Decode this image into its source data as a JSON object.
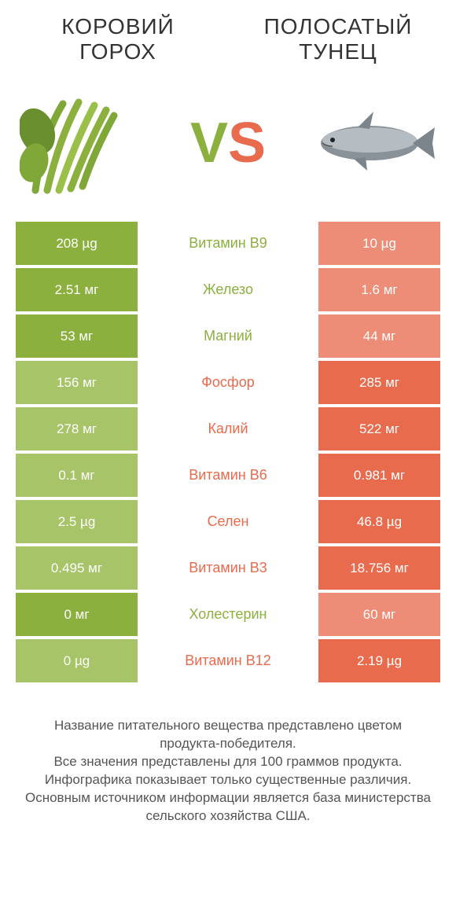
{
  "colors": {
    "left": "#8bb03e",
    "right": "#e96b4e",
    "left_dim": "#a8c468",
    "right_dim": "#ed8d77"
  },
  "products": {
    "left_title": "КОРОВИЙ ГОРОХ",
    "right_title": "ПОЛОСАТЫЙ ТУНЕЦ"
  },
  "vs": {
    "v": "V",
    "s": "S"
  },
  "rows": [
    {
      "label": "Витамин B9",
      "left": "208 µg",
      "right": "10 µg",
      "winner": "left"
    },
    {
      "label": "Железо",
      "left": "2.51 мг",
      "right": "1.6 мг",
      "winner": "left"
    },
    {
      "label": "Магний",
      "left": "53 мг",
      "right": "44 мг",
      "winner": "left"
    },
    {
      "label": "Фосфор",
      "left": "156 мг",
      "right": "285 мг",
      "winner": "right"
    },
    {
      "label": "Калий",
      "left": "278 мг",
      "right": "522 мг",
      "winner": "right"
    },
    {
      "label": "Витамин B6",
      "left": "0.1 мг",
      "right": "0.981 мг",
      "winner": "right"
    },
    {
      "label": "Селен",
      "left": "2.5 µg",
      "right": "46.8 µg",
      "winner": "right"
    },
    {
      "label": "Витамин B3",
      "left": "0.495 мг",
      "right": "18.756 мг",
      "winner": "right"
    },
    {
      "label": "Холестерин",
      "left": "0 мг",
      "right": "60 мг",
      "winner": "left"
    },
    {
      "label": "Витамин B12",
      "left": "0 µg",
      "right": "2.19 µg",
      "winner": "right"
    }
  ],
  "footer_lines": [
    "Название питательного вещества представлено цветом продукта-победителя.",
    "Все значения представлены для 100 граммов продукта.",
    "Инфографика показывает только существенные различия.",
    "Основным источником информации является база министерства сельского хозяйства США."
  ]
}
